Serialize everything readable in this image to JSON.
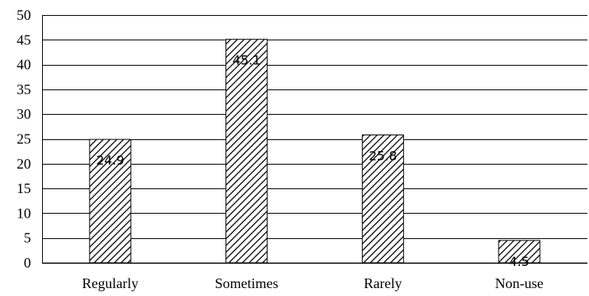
{
  "chart_data": {
    "type": "bar",
    "title": "",
    "xlabel": "",
    "ylabel": "",
    "categories": [
      "Regularly",
      "Sometimes",
      "Rarely",
      "Non-use"
    ],
    "values": [
      24.9,
      45.1,
      25.8,
      4.5
    ],
    "data_labels": [
      "24.9",
      "45.1",
      "25.8",
      "4.5"
    ],
    "ylim": [
      0,
      50
    ],
    "yticks": [
      0,
      5,
      10,
      15,
      20,
      25,
      30,
      35,
      40,
      45,
      50
    ],
    "ytick_labels": [
      "0",
      "5",
      "10",
      "15",
      "20",
      "25",
      "30",
      "35",
      "40",
      "45",
      "50"
    ],
    "grid": "horizontal",
    "legend": "none",
    "bar_fill": "diagonal-hatch",
    "colors": {
      "bar_stroke": "#000000",
      "grid": "#000000",
      "background": "#ffffff"
    }
  }
}
